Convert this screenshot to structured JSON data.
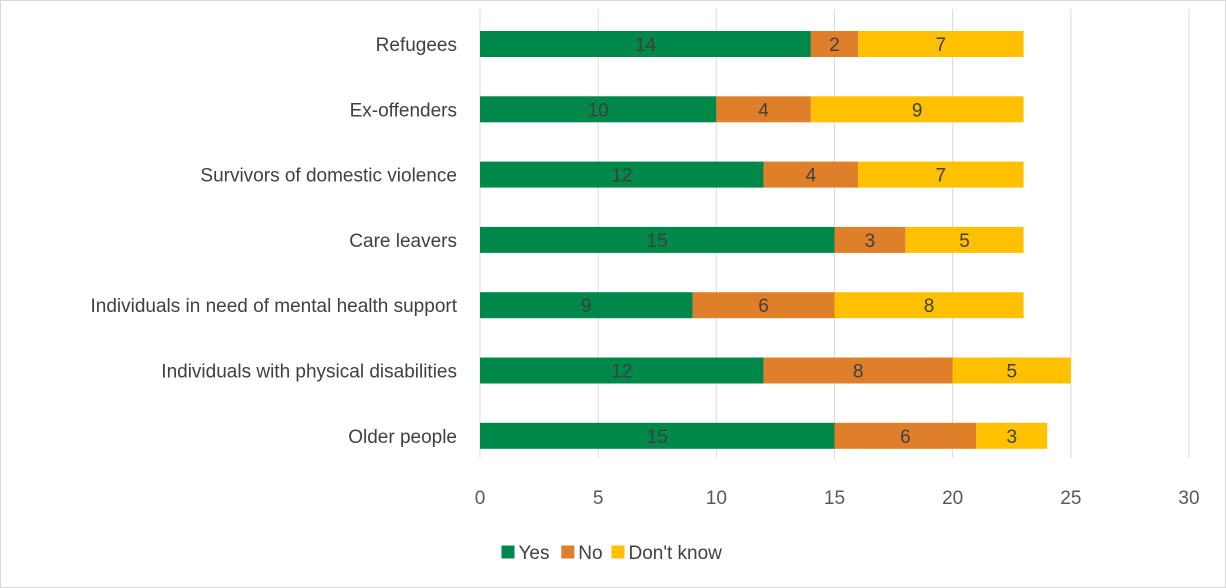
{
  "chart_data": {
    "type": "bar",
    "orientation": "horizontal",
    "stacked": true,
    "categories": [
      "Refugees",
      "Ex-offenders",
      "Survivors of domestic violence",
      "Care leavers",
      "Individuals in need of mental health support",
      "Individuals with physical disabilities",
      "Older people"
    ],
    "series": [
      {
        "name": "Yes",
        "color": "#00874a",
        "values": [
          14,
          10,
          12,
          15,
          9,
          12,
          15
        ]
      },
      {
        "name": "No",
        "color": "#e07f2a",
        "values": [
          2,
          4,
          4,
          3,
          6,
          8,
          6
        ]
      },
      {
        "name": "Don't know",
        "color": "#ffc000",
        "values": [
          7,
          9,
          7,
          5,
          8,
          5,
          3
        ]
      }
    ],
    "xlim": [
      0,
      30
    ],
    "xticks": [
      "0",
      "5",
      "10",
      "15",
      "20",
      "25",
      "30"
    ],
    "grid": true,
    "legend_position": "bottom-center",
    "data_labels": true,
    "title": "",
    "xlabel": "",
    "ylabel": ""
  }
}
